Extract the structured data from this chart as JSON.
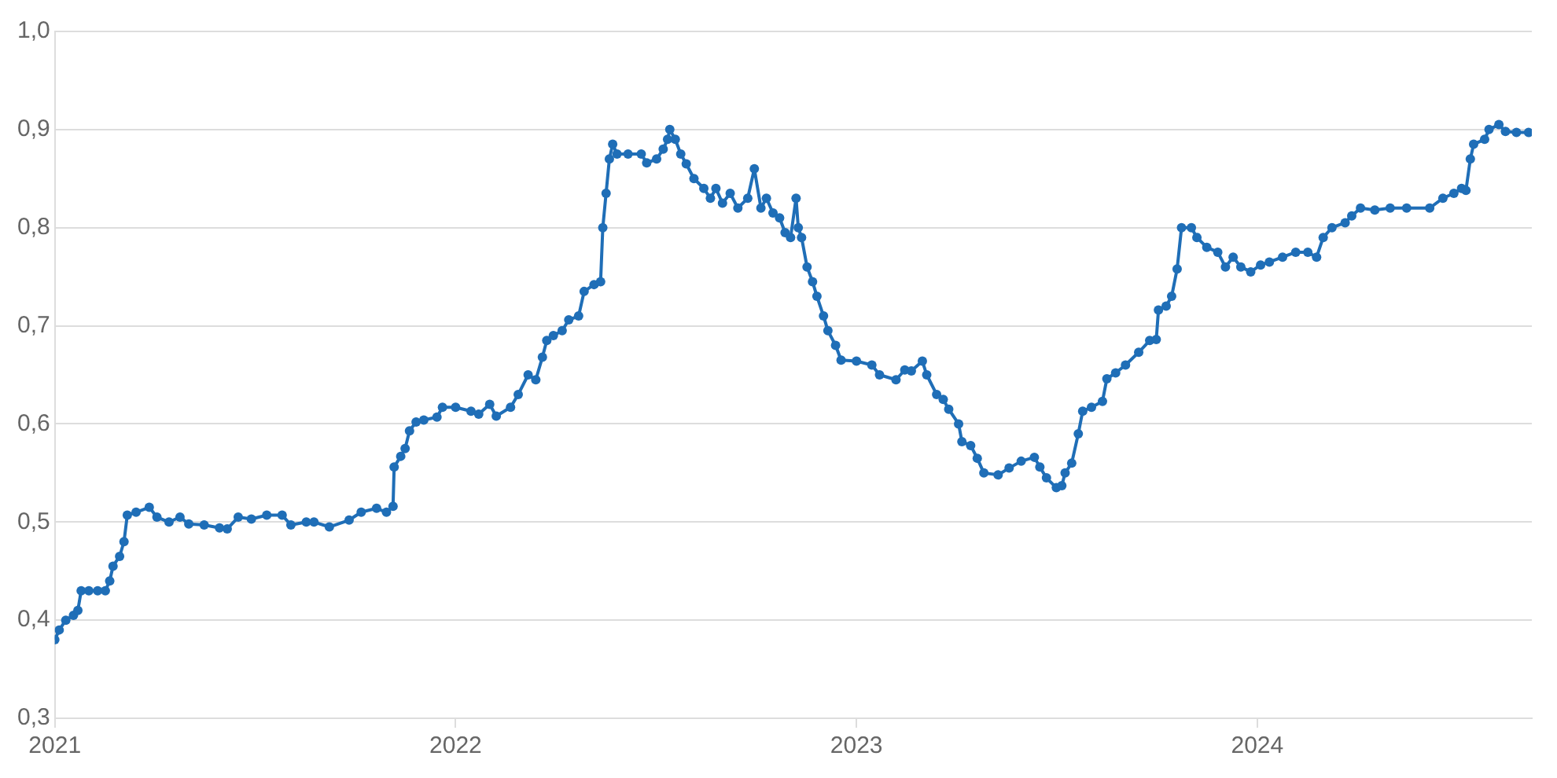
{
  "chart_data": {
    "type": "line",
    "xlim": [
      "2021-01-01",
      "2024-09-07"
    ],
    "xticks": [
      "2021",
      "2022",
      "2023",
      "2024"
    ],
    "ylim": [
      0.3,
      1.0
    ],
    "yticks": [
      {
        "value": 0.3,
        "label": "0,3"
      },
      {
        "value": 0.4,
        "label": "0,4"
      },
      {
        "value": 0.5,
        "label": "0,5"
      },
      {
        "value": 0.6,
        "label": "0,6"
      },
      {
        "value": 0.7,
        "label": "0,7"
      },
      {
        "value": 0.8,
        "label": "0,8"
      },
      {
        "value": 0.9,
        "label": "0,9"
      },
      {
        "value": 1.0,
        "label": "1,0"
      }
    ],
    "grid": "y",
    "legend": false,
    "marker": "circle",
    "line_style": "solid",
    "x": [
      "2021-01-01",
      "2021-01-05",
      "2021-01-11",
      "2021-01-18",
      "2021-01-22",
      "2021-01-25",
      "2021-02-01",
      "2021-02-09",
      "2021-02-16",
      "2021-02-20",
      "2021-02-23",
      "2021-03-01",
      "2021-03-05",
      "2021-03-08",
      "2021-03-16",
      "2021-03-28",
      "2021-04-04",
      "2021-04-15",
      "2021-04-25",
      "2021-05-03",
      "2021-05-17",
      "2021-05-31",
      "2021-06-07",
      "2021-06-17",
      "2021-06-29",
      "2021-07-13",
      "2021-07-27",
      "2021-08-04",
      "2021-08-18",
      "2021-08-25",
      "2021-09-08",
      "2021-09-26",
      "2021-10-07",
      "2021-10-21",
      "2021-10-30",
      "2021-11-05",
      "2021-11-06",
      "2021-11-12",
      "2021-11-16",
      "2021-11-20",
      "2021-11-26",
      "2021-12-03",
      "2021-12-15",
      "2021-12-20",
      "2022-01-01",
      "2022-01-15",
      "2022-01-22",
      "2022-02-01",
      "2022-02-07",
      "2022-02-20",
      "2022-02-27",
      "2022-03-08",
      "2022-03-15",
      "2022-03-21",
      "2022-03-25",
      "2022-03-31",
      "2022-04-08",
      "2022-04-14",
      "2022-04-23",
      "2022-04-28",
      "2022-05-07",
      "2022-05-13",
      "2022-05-15",
      "2022-05-18",
      "2022-05-21",
      "2022-05-24",
      "2022-05-28",
      "2022-06-07",
      "2022-06-19",
      "2022-06-24",
      "2022-07-03",
      "2022-07-09",
      "2022-07-13",
      "2022-07-15",
      "2022-07-20",
      "2022-07-25",
      "2022-07-30",
      "2022-08-06",
      "2022-08-15",
      "2022-08-21",
      "2022-08-26",
      "2022-09-01",
      "2022-09-08",
      "2022-09-15",
      "2022-09-24",
      "2022-09-30",
      "2022-10-06",
      "2022-10-11",
      "2022-10-17",
      "2022-10-23",
      "2022-10-28",
      "2022-11-02",
      "2022-11-07",
      "2022-11-09",
      "2022-11-12",
      "2022-11-17",
      "2022-11-22",
      "2022-11-26",
      "2022-12-02",
      "2022-12-06",
      "2022-12-13",
      "2022-12-18",
      "2023-01-01",
      "2023-01-15",
      "2023-01-22",
      "2023-02-06",
      "2023-02-14",
      "2023-02-20",
      "2023-03-02",
      "2023-03-06",
      "2023-03-15",
      "2023-03-21",
      "2023-03-26",
      "2023-04-04",
      "2023-04-07",
      "2023-04-15",
      "2023-04-21",
      "2023-04-27",
      "2023-05-10",
      "2023-05-20",
      "2023-05-31",
      "2023-06-12",
      "2023-06-17",
      "2023-06-23",
      "2023-07-02",
      "2023-07-07",
      "2023-07-10",
      "2023-07-16",
      "2023-07-22",
      "2023-07-26",
      "2023-08-03",
      "2023-08-13",
      "2023-08-17",
      "2023-08-25",
      "2023-09-03",
      "2023-09-15",
      "2023-09-25",
      "2023-10-01",
      "2023-10-03",
      "2023-10-10",
      "2023-10-15",
      "2023-10-20",
      "2023-10-24",
      "2023-11-02",
      "2023-11-07",
      "2023-11-16",
      "2023-11-26",
      "2023-12-03",
      "2023-12-10",
      "2023-12-17",
      "2023-12-26",
      "2024-01-04",
      "2024-01-12",
      "2024-01-24",
      "2024-02-05",
      "2024-02-16",
      "2024-02-24",
      "2024-03-01",
      "2024-03-09",
      "2024-03-21",
      "2024-03-27",
      "2024-04-04",
      "2024-04-17",
      "2024-05-01",
      "2024-05-16",
      "2024-06-06",
      "2024-06-18",
      "2024-06-28",
      "2024-07-05",
      "2024-07-09",
      "2024-07-13",
      "2024-07-16",
      "2024-07-26",
      "2024-07-30",
      "2024-08-08",
      "2024-08-14",
      "2024-08-24",
      "2024-09-04"
    ],
    "series": [
      {
        "color": "#1f6eb7",
        "values": [
          0.38,
          0.39,
          0.4,
          0.405,
          0.41,
          0.43,
          0.43,
          0.43,
          0.43,
          0.44,
          0.455,
          0.465,
          0.48,
          0.507,
          0.51,
          0.515,
          0.505,
          0.5,
          0.505,
          0.498,
          0.497,
          0.494,
          0.493,
          0.505,
          0.503,
          0.507,
          0.507,
          0.497,
          0.5,
          0.5,
          0.495,
          0.502,
          0.51,
          0.514,
          0.51,
          0.516,
          0.556,
          0.567,
          0.575,
          0.593,
          0.602,
          0.604,
          0.607,
          0.617,
          0.617,
          0.613,
          0.61,
          0.62,
          0.608,
          0.617,
          0.63,
          0.65,
          0.645,
          0.668,
          0.685,
          0.69,
          0.695,
          0.706,
          0.71,
          0.735,
          0.742,
          0.745,
          0.8,
          0.835,
          0.87,
          0.885,
          0.875,
          0.875,
          0.875,
          0.866,
          0.87,
          0.88,
          0.89,
          0.9,
          0.89,
          0.875,
          0.865,
          0.85,
          0.84,
          0.83,
          0.84,
          0.825,
          0.835,
          0.82,
          0.83,
          0.86,
          0.82,
          0.83,
          0.815,
          0.81,
          0.795,
          0.79,
          0.83,
          0.8,
          0.79,
          0.76,
          0.745,
          0.73,
          0.71,
          0.695,
          0.68,
          0.665,
          0.664,
          0.66,
          0.65,
          0.645,
          0.655,
          0.654,
          0.664,
          0.65,
          0.63,
          0.625,
          0.615,
          0.6,
          0.582,
          0.578,
          0.565,
          0.55,
          0.548,
          0.555,
          0.562,
          0.566,
          0.556,
          0.545,
          0.535,
          0.537,
          0.55,
          0.56,
          0.59,
          0.613,
          0.617,
          0.623,
          0.646,
          0.652,
          0.66,
          0.673,
          0.685,
          0.686,
          0.716,
          0.72,
          0.73,
          0.758,
          0.8,
          0.8,
          0.79,
          0.78,
          0.775,
          0.76,
          0.77,
          0.76,
          0.755,
          0.762,
          0.765,
          0.77,
          0.775,
          0.775,
          0.77,
          0.79,
          0.8,
          0.805,
          0.812,
          0.82,
          0.818,
          0.82,
          0.82,
          0.82,
          0.83,
          0.835,
          0.84,
          0.838,
          0.87,
          0.885,
          0.89,
          0.9,
          0.905,
          0.898,
          0.897,
          0.897
        ]
      }
    ]
  }
}
